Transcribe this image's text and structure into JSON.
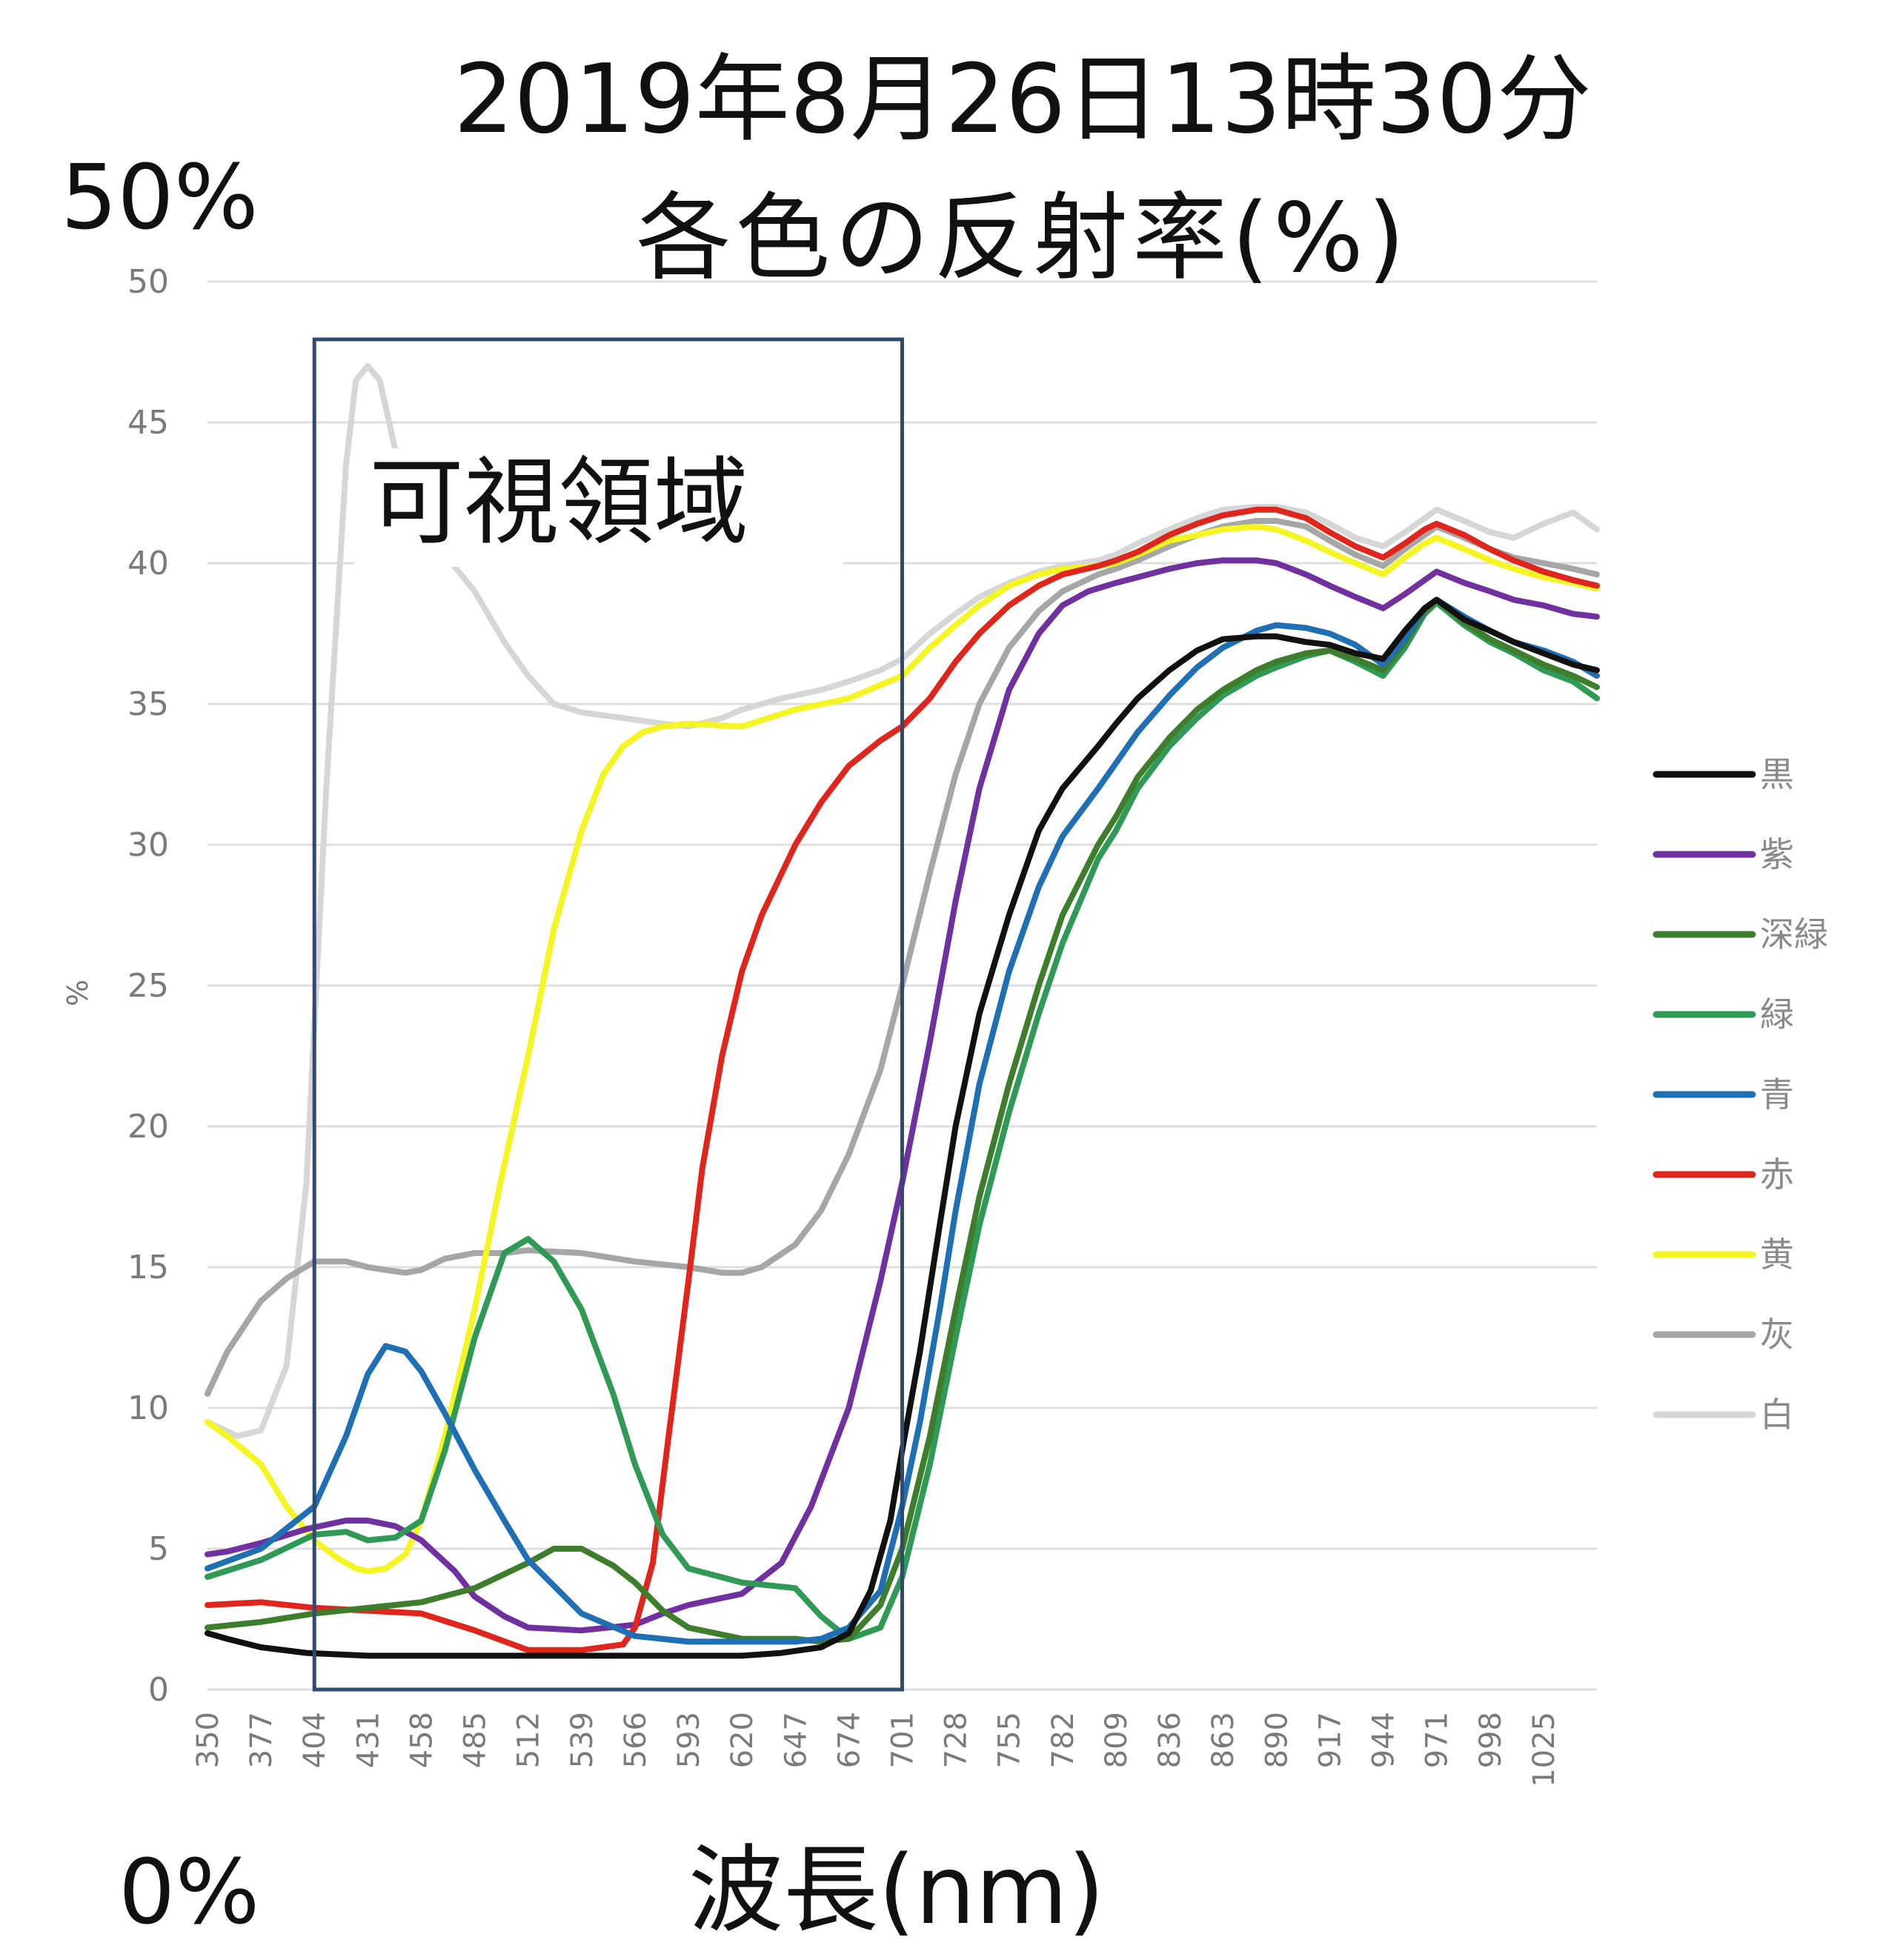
{
  "chart_data": {
    "type": "line",
    "title": "2019年8月26日13時30分",
    "subtitle": "各色の反射率(%)",
    "xlabel": "波長(nm)",
    "ylabel": "%",
    "y_top_label": "50%",
    "y_bottom_label": "0%",
    "region_label": "可視領域",
    "region_range": [
      404,
      701
    ],
    "xlim": [
      350,
      1052
    ],
    "ylim": [
      0,
      50
    ],
    "yticks": [
      "0",
      "5",
      "10",
      "15",
      "20",
      "25",
      "30",
      "35",
      "40",
      "45",
      "50"
    ],
    "xticks": [
      "350",
      "377",
      "404",
      "431",
      "458",
      "485",
      "512",
      "539",
      "566",
      "593",
      "620",
      "647",
      "674",
      "701",
      "728",
      "755",
      "782",
      "809",
      "836",
      "863",
      "890",
      "917",
      "944",
      "971",
      "998",
      "1025"
    ],
    "grid": true,
    "legend_position": "right",
    "series": [
      {
        "name": "黒",
        "color": "#111111",
        "x": [
          350,
          360,
          377,
          400,
          431,
          458,
          485,
          512,
          539,
          566,
          593,
          620,
          640,
          660,
          674,
          685,
          695,
          701,
          710,
          720,
          728,
          740,
          755,
          770,
          782,
          800,
          809,
          820,
          836,
          850,
          863,
          880,
          890,
          905,
          917,
          930,
          944,
          955,
          965,
          971,
          985,
          998,
          1010,
          1025,
          1040,
          1052
        ],
        "y": [
          2.0,
          1.8,
          1.5,
          1.3,
          1.2,
          1.2,
          1.2,
          1.2,
          1.2,
          1.2,
          1.2,
          1.2,
          1.3,
          1.5,
          2.0,
          3.5,
          6.0,
          8.5,
          12.0,
          16.5,
          20.0,
          24.0,
          27.5,
          30.5,
          32.0,
          33.5,
          34.3,
          35.2,
          36.2,
          36.9,
          37.3,
          37.4,
          37.4,
          37.2,
          37.1,
          36.8,
          36.6,
          37.6,
          38.4,
          38.7,
          38.0,
          37.6,
          37.2,
          36.8,
          36.4,
          36.2
        ]
      },
      {
        "name": "紫",
        "color": "#7030a0",
        "x": [
          350,
          360,
          377,
          400,
          420,
          431,
          445,
          458,
          475,
          485,
          500,
          512,
          539,
          566,
          580,
          593,
          620,
          640,
          655,
          674,
          690,
          701,
          715,
          728,
          740,
          755,
          770,
          782,
          795,
          809,
          820,
          836,
          850,
          863,
          880,
          890,
          905,
          917,
          930,
          944,
          955,
          965,
          971,
          985,
          998,
          1010,
          1025,
          1040,
          1052
        ],
        "y": [
          4.8,
          4.9,
          5.2,
          5.7,
          6.0,
          6.0,
          5.8,
          5.3,
          4.2,
          3.3,
          2.6,
          2.2,
          2.1,
          2.3,
          2.7,
          3.0,
          3.4,
          4.5,
          6.5,
          10.0,
          14.5,
          18.0,
          23.0,
          28.0,
          32.0,
          35.5,
          37.5,
          38.5,
          39.0,
          39.3,
          39.5,
          39.8,
          40.0,
          40.1,
          40.1,
          40.0,
          39.6,
          39.2,
          38.8,
          38.4,
          38.9,
          39.4,
          39.7,
          39.3,
          39.0,
          38.7,
          38.5,
          38.2,
          38.1
        ]
      },
      {
        "name": "深緑",
        "color": "#3e7d2c",
        "x": [
          350,
          377,
          404,
          431,
          458,
          485,
          512,
          525,
          539,
          555,
          566,
          580,
          593,
          620,
          647,
          660,
          674,
          690,
          701,
          715,
          728,
          740,
          755,
          770,
          782,
          800,
          809,
          820,
          836,
          850,
          863,
          880,
          890,
          905,
          917,
          930,
          944,
          955,
          965,
          971,
          985,
          998,
          1010,
          1025,
          1040,
          1052
        ],
        "y": [
          2.2,
          2.4,
          2.7,
          2.9,
          3.1,
          3.6,
          4.5,
          5.0,
          5.0,
          4.4,
          3.8,
          2.8,
          2.2,
          1.8,
          1.8,
          1.7,
          1.8,
          3.0,
          5.0,
          9.0,
          13.5,
          17.5,
          21.5,
          25.0,
          27.5,
          30.0,
          31.0,
          32.4,
          33.8,
          34.8,
          35.5,
          36.2,
          36.5,
          36.8,
          36.9,
          36.6,
          36.2,
          37.2,
          38.3,
          38.7,
          37.9,
          37.3,
          36.9,
          36.4,
          36.0,
          35.6
        ]
      },
      {
        "name": "緑",
        "color": "#2e9a55",
        "x": [
          350,
          377,
          404,
          420,
          431,
          445,
          458,
          470,
          485,
          500,
          512,
          525,
          539,
          555,
          566,
          580,
          593,
          620,
          647,
          660,
          674,
          690,
          701,
          715,
          728,
          740,
          755,
          770,
          782,
          800,
          809,
          820,
          836,
          850,
          863,
          880,
          890,
          905,
          917,
          930,
          944,
          955,
          965,
          971,
          985,
          998,
          1010,
          1025,
          1040,
          1052
        ],
        "y": [
          4.0,
          4.6,
          5.5,
          5.6,
          5.3,
          5.4,
          6.0,
          8.5,
          12.5,
          15.5,
          16.0,
          15.2,
          13.5,
          10.5,
          8.0,
          5.5,
          4.3,
          3.8,
          3.6,
          2.6,
          1.8,
          2.2,
          4.0,
          8.0,
          12.5,
          16.5,
          20.5,
          24.0,
          26.5,
          29.5,
          30.5,
          32.0,
          33.5,
          34.5,
          35.3,
          36.0,
          36.3,
          36.7,
          36.9,
          36.5,
          36.0,
          37.0,
          38.2,
          38.6,
          37.8,
          37.2,
          36.8,
          36.2,
          35.8,
          35.2
        ]
      },
      {
        "name": "青",
        "color": "#1f6fb4",
        "x": [
          350,
          377,
          404,
          420,
          431,
          440,
          450,
          458,
          470,
          485,
          500,
          512,
          539,
          566,
          593,
          620,
          647,
          660,
          674,
          690,
          701,
          710,
          720,
          728,
          740,
          755,
          770,
          782,
          800,
          809,
          820,
          836,
          850,
          863,
          880,
          890,
          905,
          917,
          930,
          944,
          955,
          965,
          971,
          985,
          998,
          1010,
          1025,
          1040,
          1052
        ],
        "y": [
          4.3,
          5.0,
          6.5,
          9.0,
          11.2,
          12.2,
          12.0,
          11.3,
          9.8,
          7.8,
          6.0,
          4.6,
          2.7,
          1.9,
          1.7,
          1.7,
          1.7,
          1.8,
          2.2,
          3.5,
          6.5,
          9.5,
          13.5,
          17.0,
          21.5,
          25.5,
          28.5,
          30.3,
          32.0,
          32.9,
          34.0,
          35.3,
          36.3,
          37.0,
          37.6,
          37.8,
          37.7,
          37.5,
          37.1,
          36.4,
          37.3,
          38.4,
          38.7,
          38.1,
          37.6,
          37.2,
          36.9,
          36.5,
          36.0
        ]
      },
      {
        "name": "赤",
        "color": "#e0261c",
        "x": [
          350,
          377,
          404,
          431,
          458,
          485,
          512,
          539,
          560,
          566,
          575,
          583,
          593,
          600,
          610,
          620,
          630,
          647,
          660,
          674,
          690,
          701,
          715,
          728,
          740,
          755,
          770,
          782,
          800,
          809,
          820,
          836,
          850,
          863,
          880,
          890,
          905,
          917,
          930,
          944,
          955,
          965,
          971,
          985,
          998,
          1010,
          1025,
          1040,
          1052
        ],
        "y": [
          3.0,
          3.1,
          2.9,
          2.8,
          2.7,
          2.1,
          1.4,
          1.4,
          1.6,
          2.2,
          4.5,
          9.0,
          14.5,
          18.5,
          22.5,
          25.5,
          27.5,
          30.0,
          31.5,
          32.8,
          33.7,
          34.2,
          35.2,
          36.5,
          37.5,
          38.5,
          39.2,
          39.6,
          39.9,
          40.1,
          40.4,
          41.0,
          41.4,
          41.7,
          41.9,
          41.9,
          41.6,
          41.1,
          40.6,
          40.2,
          40.7,
          41.2,
          41.4,
          41.0,
          40.5,
          40.1,
          39.7,
          39.4,
          39.2
        ]
      },
      {
        "name": "黄",
        "color": "#f5f522",
        "x": [
          350,
          360,
          377,
          390,
          404,
          415,
          425,
          431,
          440,
          450,
          458,
          470,
          485,
          498,
          512,
          525,
          539,
          550,
          560,
          570,
          580,
          593,
          620,
          647,
          674,
          701,
          715,
          728,
          740,
          755,
          770,
          782,
          800,
          809,
          820,
          836,
          850,
          863,
          880,
          890,
          905,
          917,
          930,
          944,
          955,
          965,
          971,
          985,
          998,
          1010,
          1025,
          1040,
          1052
        ],
        "y": [
          9.5,
          9.0,
          8.0,
          6.5,
          5.3,
          4.7,
          4.3,
          4.2,
          4.3,
          4.8,
          6.0,
          9.0,
          13.5,
          18.0,
          22.5,
          27.0,
          30.5,
          32.5,
          33.5,
          34.0,
          34.2,
          34.3,
          34.2,
          34.8,
          35.2,
          36.0,
          37.0,
          37.8,
          38.5,
          39.2,
          39.6,
          39.8,
          39.9,
          40.0,
          40.3,
          40.8,
          41.0,
          41.2,
          41.3,
          41.2,
          40.8,
          40.4,
          40.0,
          39.6,
          40.2,
          40.7,
          40.9,
          40.5,
          40.1,
          39.8,
          39.5,
          39.3,
          39.1
        ]
      },
      {
        "name": "灰",
        "color": "#a6a6a6",
        "x": [
          350,
          360,
          377,
          390,
          404,
          420,
          431,
          440,
          450,
          458,
          470,
          485,
          500,
          512,
          539,
          566,
          593,
          610,
          620,
          630,
          647,
          660,
          674,
          690,
          701,
          715,
          728,
          740,
          755,
          770,
          782,
          800,
          809,
          820,
          836,
          850,
          863,
          880,
          890,
          905,
          917,
          930,
          944,
          955,
          965,
          971,
          985,
          998,
          1010,
          1025,
          1040,
          1052
        ],
        "y": [
          10.5,
          12.0,
          13.8,
          14.6,
          15.2,
          15.2,
          15.0,
          14.9,
          14.8,
          14.9,
          15.3,
          15.5,
          15.5,
          15.6,
          15.5,
          15.2,
          15.0,
          14.8,
          14.8,
          15.0,
          15.8,
          17.0,
          19.0,
          22.0,
          25.0,
          29.0,
          32.5,
          35.0,
          37.0,
          38.3,
          39.0,
          39.6,
          39.8,
          40.1,
          40.6,
          41.0,
          41.3,
          41.5,
          41.5,
          41.3,
          40.8,
          40.3,
          39.9,
          40.5,
          41.0,
          41.3,
          40.9,
          40.5,
          40.2,
          40.0,
          39.8,
          39.6
        ]
      },
      {
        "name": "白",
        "color": "#d6d6d6",
        "x": [
          350,
          365,
          377,
          390,
          400,
          410,
          420,
          425,
          431,
          437,
          445,
          458,
          470,
          485,
          500,
          512,
          525,
          539,
          560,
          580,
          593,
          610,
          620,
          640,
          660,
          674,
          690,
          701,
          715,
          728,
          740,
          755,
          770,
          782,
          800,
          809,
          820,
          836,
          850,
          863,
          880,
          890,
          905,
          917,
          930,
          944,
          955,
          965,
          971,
          985,
          998,
          1010,
          1025,
          1040,
          1052
        ],
        "y": [
          9.5,
          9.0,
          9.2,
          11.5,
          18.0,
          32.0,
          43.5,
          46.5,
          47.0,
          46.5,
          44.0,
          41.5,
          40.3,
          39.0,
          37.2,
          36.0,
          35.0,
          34.7,
          34.5,
          34.3,
          34.2,
          34.5,
          34.8,
          35.2,
          35.5,
          35.8,
          36.2,
          36.6,
          37.5,
          38.2,
          38.8,
          39.3,
          39.7,
          39.9,
          40.1,
          40.3,
          40.7,
          41.2,
          41.6,
          41.9,
          42.0,
          42.0,
          41.8,
          41.4,
          40.9,
          40.6,
          41.1,
          41.6,
          41.9,
          41.5,
          41.1,
          40.9,
          41.4,
          41.8,
          41.2
        ]
      }
    ]
  }
}
